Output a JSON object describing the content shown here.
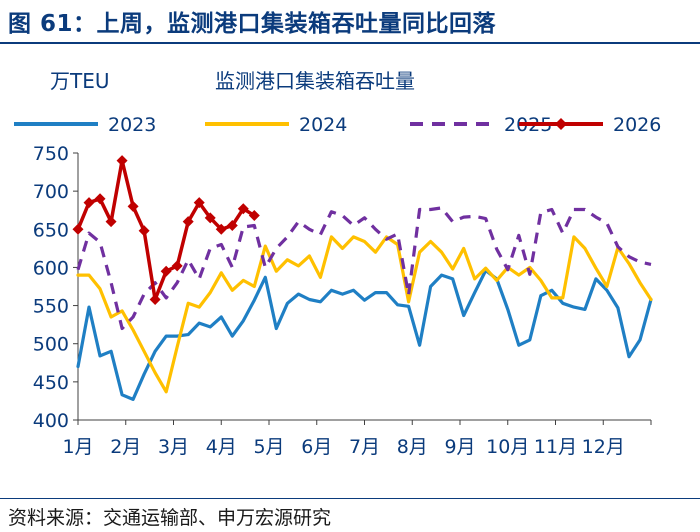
{
  "figure": {
    "title": "图 61：上周，监测港口集装箱吞吐量同比回落",
    "source": "资料来源：交通运输部、申万宏源研究"
  },
  "chart_data": {
    "type": "line",
    "title": "监测港口集装箱吞吐量",
    "ylabel": "万TEU",
    "ylim": [
      400,
      750
    ],
    "yticks": [
      400,
      450,
      500,
      550,
      600,
      650,
      700,
      750
    ],
    "x_ticklabels": [
      "1月",
      "2月",
      "3月",
      "4月",
      "5月",
      "6月",
      "7月",
      "8月",
      "9月",
      "10月",
      "11月",
      "12月"
    ],
    "x_unit": "week",
    "grid": false,
    "legend_position": "top",
    "series": [
      {
        "name": "2023",
        "color": "#1f7fc4",
        "dashed": false,
        "marker": false,
        "x": [
          1,
          2,
          3,
          4,
          5,
          6,
          7,
          8,
          9,
          10,
          11,
          12,
          13,
          14,
          15,
          16,
          17,
          18,
          19,
          20,
          21,
          22,
          23,
          24,
          25,
          26,
          27,
          28,
          29,
          30,
          31,
          32,
          33,
          34,
          35,
          36,
          37,
          38,
          39,
          40,
          41,
          42,
          43,
          44,
          45,
          46,
          47,
          48,
          49,
          50,
          51,
          52,
          53
        ],
        "y": [
          470,
          548,
          484,
          490,
          433,
          427,
          460,
          490,
          510,
          510,
          512,
          527,
          522,
          535,
          510,
          530,
          557,
          587,
          520,
          553,
          565,
          558,
          555,
          570,
          565,
          570,
          557,
          567,
          567,
          551,
          549,
          498,
          575,
          590,
          585,
          537,
          567,
          596,
          585,
          545,
          498,
          505,
          563,
          570,
          553,
          548,
          545,
          585,
          570,
          547,
          483,
          505,
          558
        ]
      },
      {
        "name": "2024",
        "color": "#ffc000",
        "dashed": false,
        "marker": false,
        "x": [
          1,
          2,
          3,
          4,
          5,
          6,
          7,
          8,
          9,
          10,
          11,
          12,
          13,
          14,
          15,
          16,
          17,
          18,
          19,
          20,
          21,
          22,
          23,
          24,
          25,
          26,
          27,
          28,
          29,
          30,
          31,
          32,
          33,
          34,
          35,
          36,
          37,
          38,
          39,
          40,
          41,
          42,
          43,
          44,
          45,
          46,
          47,
          48,
          49,
          50,
          51,
          52,
          53
        ],
        "y": [
          590,
          590,
          572,
          535,
          543,
          518,
          490,
          462,
          437,
          496,
          553,
          548,
          567,
          593,
          570,
          583,
          575,
          628,
          595,
          610,
          602,
          615,
          587,
          640,
          625,
          640,
          634,
          620,
          640,
          630,
          555,
          620,
          634,
          620,
          598,
          625,
          585,
          599,
          583,
          600,
          590,
          600,
          583,
          560,
          560,
          640,
          625,
          599,
          575,
          626,
          605,
          580,
          558
        ]
      },
      {
        "name": "2025",
        "color": "#7030a0",
        "dashed": true,
        "marker": false,
        "x": [
          1,
          2,
          3,
          4,
          5,
          6,
          7,
          8,
          9,
          10,
          11,
          12,
          13,
          14,
          15,
          16,
          17,
          18,
          19,
          20,
          21,
          22,
          23,
          24,
          25,
          26,
          27,
          28,
          29,
          30,
          31,
          32,
          33,
          34,
          35,
          36,
          37,
          38,
          39,
          40,
          41,
          42,
          43,
          44,
          45,
          46,
          47,
          48,
          49,
          50,
          51,
          52,
          53
        ],
        "y": [
          597,
          645,
          633,
          580,
          520,
          535,
          565,
          580,
          560,
          580,
          610,
          585,
          625,
          630,
          600,
          653,
          655,
          600,
          625,
          640,
          660,
          650,
          643,
          673,
          668,
          655,
          665,
          650,
          637,
          644,
          564,
          676,
          676,
          678,
          660,
          666,
          667,
          664,
          624,
          597,
          642,
          591,
          672,
          676,
          645,
          676,
          676,
          666,
          658,
          627,
          614,
          607,
          604
        ]
      },
      {
        "name": "2026",
        "color": "#c00000",
        "dashed": false,
        "marker": true,
        "x": [
          1,
          2,
          3,
          4,
          5,
          6,
          7,
          8,
          9,
          10,
          11,
          12,
          13,
          14,
          15,
          16,
          17
        ],
        "y": [
          650,
          685,
          690,
          660,
          740,
          680,
          648,
          558,
          595,
          602,
          660,
          685,
          665,
          650,
          655,
          677,
          668
        ]
      }
    ]
  }
}
